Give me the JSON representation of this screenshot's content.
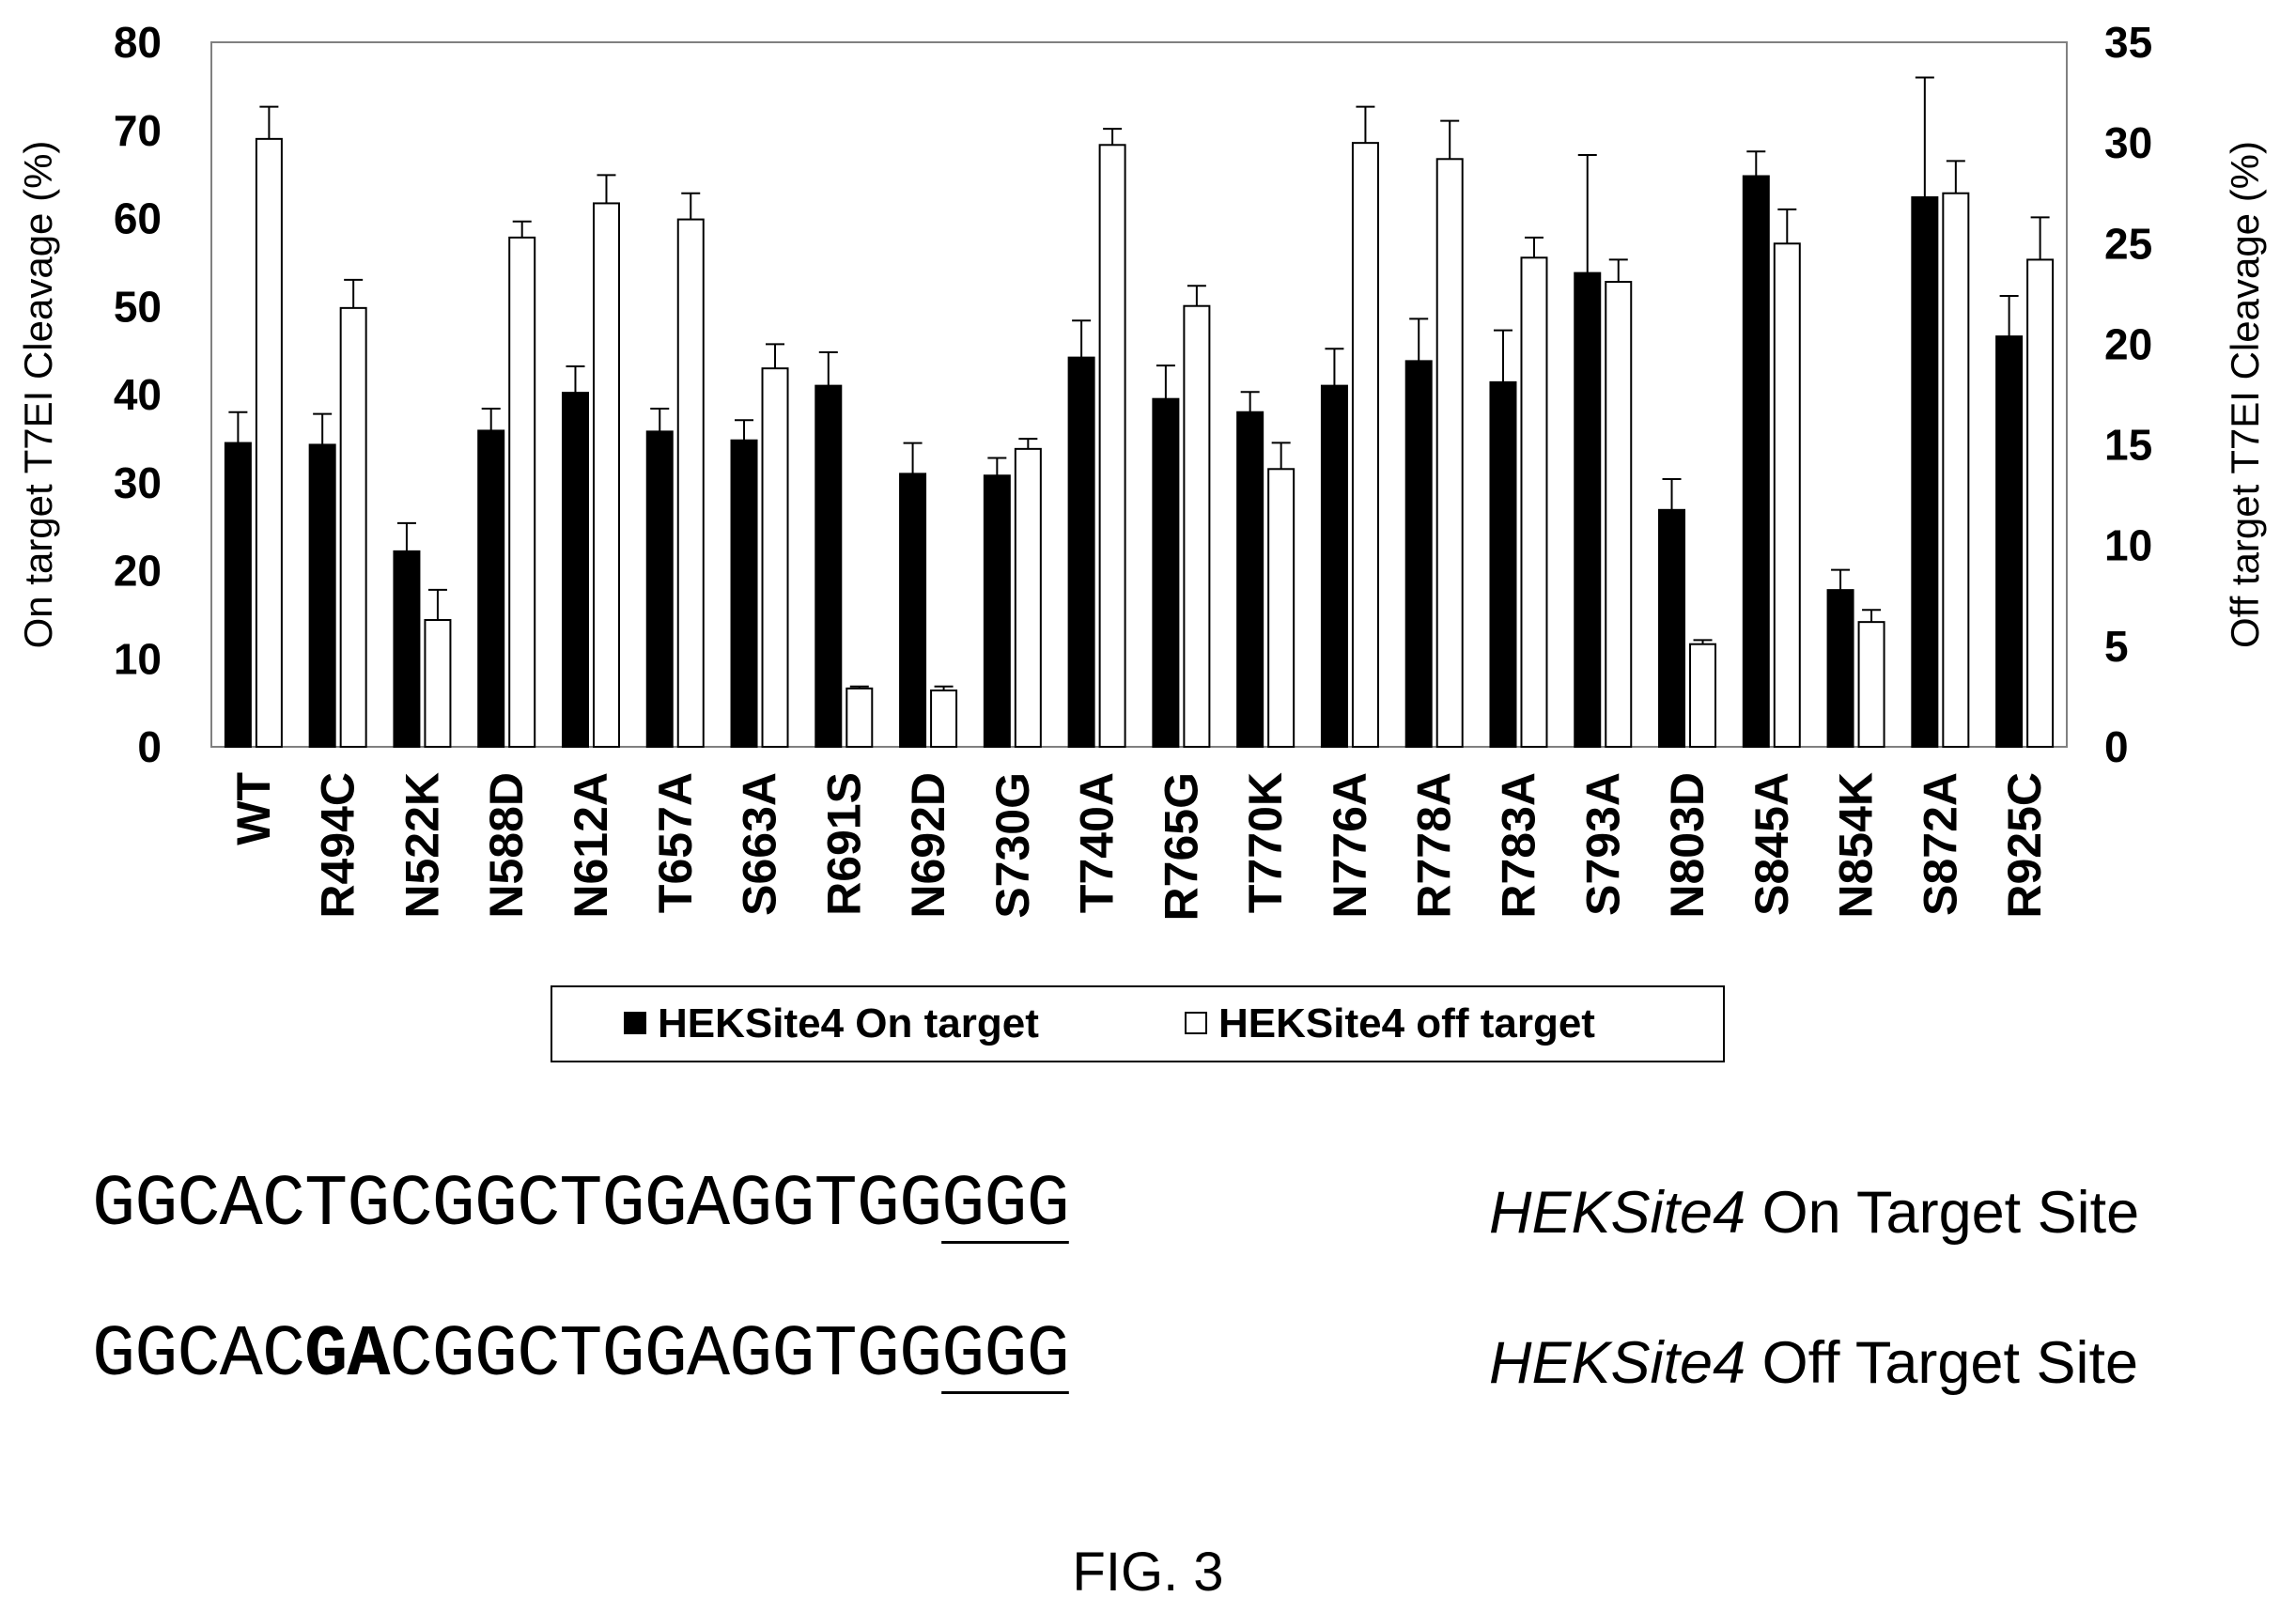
{
  "chart_data": {
    "type": "bar",
    "categories": [
      "WT",
      "R494C",
      "N522K",
      "N588D",
      "N612A",
      "T657A",
      "S663A",
      "R691S",
      "N692D",
      "S730G",
      "T740A",
      "R765G",
      "T770K",
      "N776A",
      "R778A",
      "R783A",
      "S793A",
      "N803D",
      "S845A",
      "N854K",
      "S872A",
      "R925C"
    ],
    "series": [
      {
        "name": "HEKSite4 On target",
        "axis": "left",
        "color": "#000000",
        "values": [
          34.5,
          34.3,
          22.2,
          35.9,
          40.2,
          35.8,
          34.8,
          41.0,
          31.0,
          30.8,
          44.2,
          39.5,
          38.0,
          41.0,
          43.8,
          41.4,
          53.8,
          26.9,
          64.8,
          17.8,
          62.4,
          46.6
        ],
        "errors": [
          3.5,
          3.5,
          3.2,
          2.5,
          3.0,
          2.6,
          2.3,
          3.8,
          3.5,
          2.0,
          4.2,
          3.8,
          2.3,
          4.2,
          4.8,
          5.9,
          13.4,
          3.5,
          2.8,
          2.3,
          13.6,
          4.6
        ]
      },
      {
        "name": "HEKSite4 off target",
        "axis": "right",
        "color": "#ffffff",
        "values": [
          30.2,
          21.8,
          6.3,
          25.3,
          27.0,
          26.2,
          18.8,
          2.9,
          2.8,
          14.8,
          29.9,
          21.9,
          13.8,
          30.0,
          29.2,
          24.3,
          23.1,
          5.1,
          25.0,
          6.2,
          27.5,
          24.2
        ],
        "errors": [
          1.6,
          1.4,
          1.5,
          0.8,
          1.4,
          1.3,
          1.2,
          0.1,
          0.2,
          0.5,
          0.8,
          1.0,
          1.3,
          1.8,
          1.9,
          1.0,
          1.1,
          0.2,
          1.7,
          0.6,
          1.6,
          2.1
        ]
      }
    ],
    "y_left": {
      "label": "On target T7EI Cleavage (%)",
      "ylim": [
        0,
        80
      ],
      "ticks": [
        0,
        10,
        20,
        30,
        40,
        50,
        60,
        70,
        80
      ]
    },
    "y_right": {
      "label": "Off target T7EI Cleavage (%)",
      "ylim": [
        0,
        35
      ],
      "ticks": [
        0,
        5,
        10,
        15,
        20,
        25,
        30,
        35
      ]
    },
    "legend": {
      "placement": "bottom",
      "entries": [
        "HEKSite4 On target",
        "HEKSite4 off target"
      ]
    },
    "grid": false
  },
  "sequences": [
    {
      "before": "GGCACTGCGGCTGGAGGTGG",
      "bold": "",
      "after": "",
      "pam": "GGG",
      "name_italic": "HEKSite4",
      "label": " On Target Site"
    },
    {
      "before": "GGCAC",
      "bold": "GA",
      "after": "CGGCTGGAGGTGG",
      "pam": "GGG",
      "name_italic": "HEKSite4",
      "label": " Off Target Site"
    }
  ],
  "figure_label": "FIG. 3"
}
